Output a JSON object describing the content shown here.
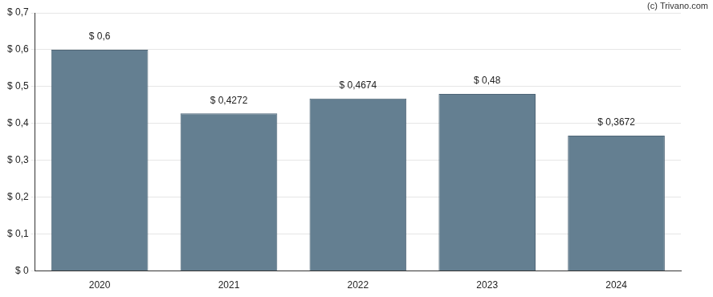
{
  "chart_data": {
    "type": "bar",
    "annotation": "(c) Trivano.com",
    "categories": [
      "2020",
      "2021",
      "2022",
      "2023",
      "2024"
    ],
    "values": [
      0.6,
      0.4272,
      0.4674,
      0.48,
      0.3672
    ],
    "value_labels": [
      "$ 0,6",
      "$ 0,4272",
      "$ 0,4674",
      "$ 0,48",
      "$ 0,3672"
    ],
    "data_labels": true,
    "color": "#647f91",
    "ylim": [
      0,
      0.7
    ],
    "yticks": [
      {
        "value": 0,
        "label": "$ 0"
      },
      {
        "value": 0.1,
        "label": "$ 0,1"
      },
      {
        "value": 0.2,
        "label": "$ 0,2"
      },
      {
        "value": 0.3,
        "label": "$ 0,3"
      },
      {
        "value": 0.4,
        "label": "$ 0,4"
      },
      {
        "value": 0.5,
        "label": "$ 0,5"
      },
      {
        "value": 0.6,
        "label": "$ 0,6"
      },
      {
        "value": 0.7,
        "label": "$ 0,7"
      }
    ],
    "grid": true
  }
}
